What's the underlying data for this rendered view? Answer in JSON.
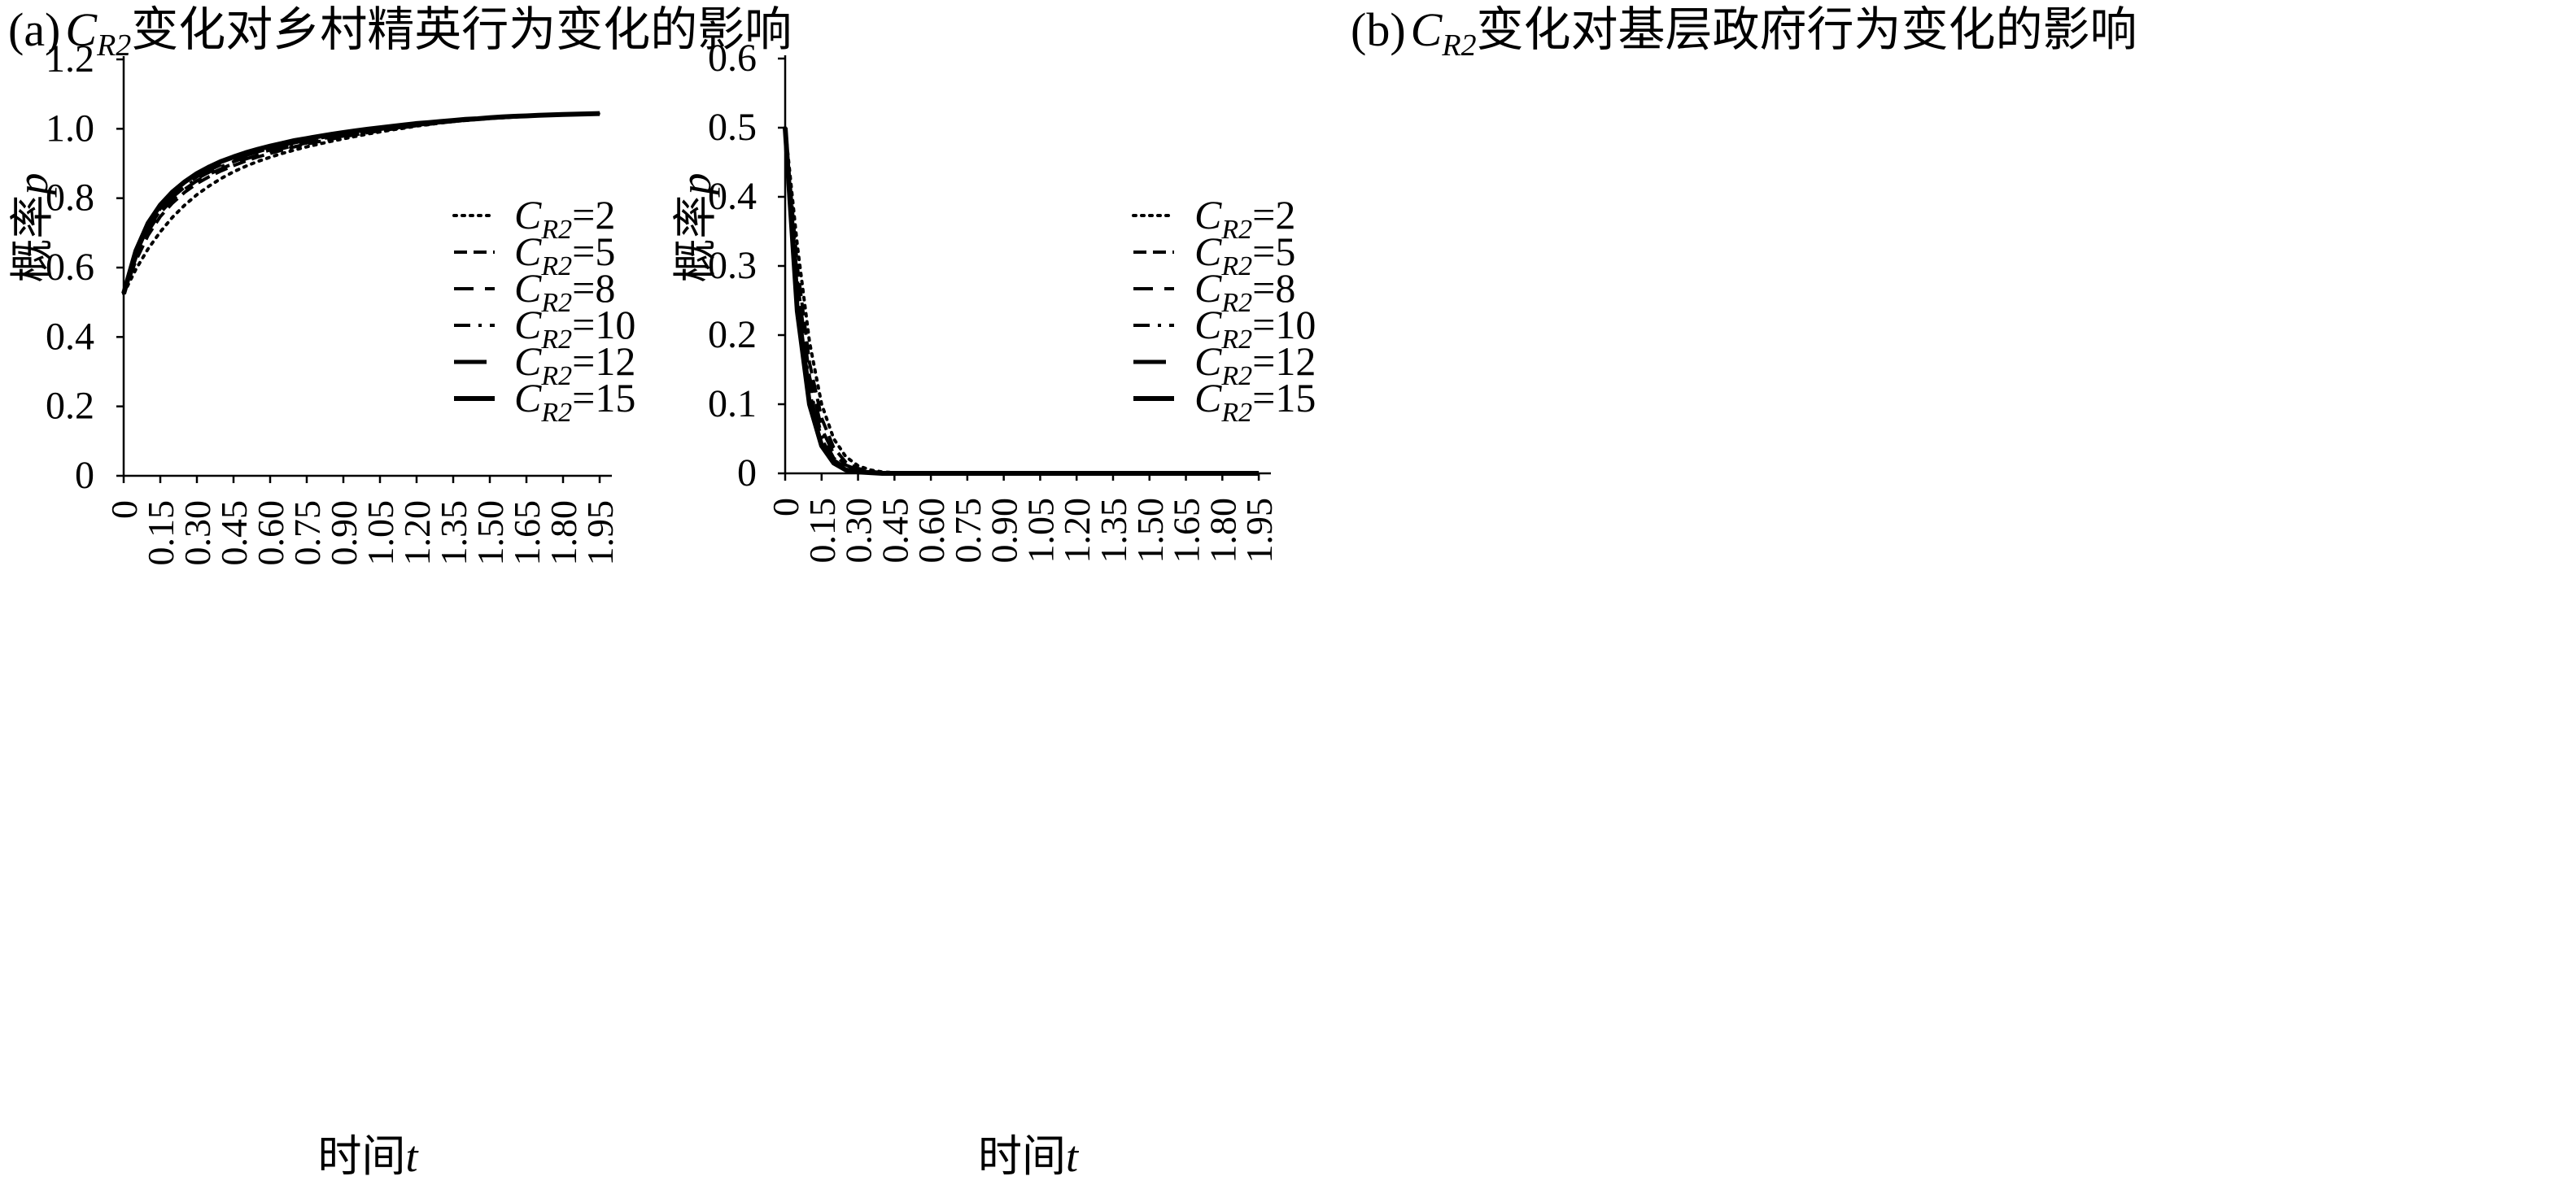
{
  "chart_data": [
    {
      "type": "line",
      "panel_label": "(a)",
      "title": "C_R2变化对乡村精英行为变化的影响",
      "title_main": "变化对乡村精英行为变化的影响",
      "title_symbol": "C",
      "title_subscript": "R2",
      "xlabel_text": "时间",
      "xlabel_var": "t",
      "ylabel_text": "概率",
      "ylabel_var": "p",
      "x_ticks": [
        "0",
        "0.15",
        "0.30",
        "0.45",
        "0.60",
        "0.75",
        "0.90",
        "1.05",
        "1.20",
        "1.35",
        "1.50",
        "1.65",
        "1.80",
        "1.95"
      ],
      "y_ticks": [
        "0",
        "0.2",
        "0.4",
        "0.6",
        "0.8",
        "1.0",
        "1.2"
      ],
      "xlim": [
        0,
        2.0
      ],
      "ylim": [
        0,
        1.2
      ],
      "legend_position": "right",
      "x": [
        0,
        0.05,
        0.1,
        0.15,
        0.2,
        0.25,
        0.3,
        0.35,
        0.4,
        0.45,
        0.5,
        0.55,
        0.6,
        0.65,
        0.7,
        0.75,
        0.8,
        0.85,
        0.9,
        0.95,
        1.0,
        1.05,
        1.1,
        1.15,
        1.2,
        1.25,
        1.3,
        1.35,
        1.4,
        1.45,
        1.5,
        1.55,
        1.6,
        1.65,
        1.7,
        1.75,
        1.8,
        1.85,
        1.9,
        1.95
      ],
      "series": [
        {
          "name": "C_R2=2",
          "label": "=2",
          "dash": "dot",
          "values": [
            0.525,
            0.595,
            0.654,
            0.703,
            0.745,
            0.78,
            0.81,
            0.835,
            0.857,
            0.876,
            0.892,
            0.906,
            0.918,
            0.929,
            0.939,
            0.948,
            0.956,
            0.964,
            0.971,
            0.978,
            0.985,
            0.991,
            0.997,
            1.002,
            1.008,
            1.012,
            1.017,
            1.021,
            1.024,
            1.027,
            1.03,
            1.032,
            1.034,
            1.036,
            1.038,
            1.04,
            1.041,
            1.042,
            1.043,
            1.044
          ]
        },
        {
          "name": "C_R2=5",
          "label": "=5",
          "dash": "short",
          "values": [
            0.525,
            0.62,
            0.693,
            0.747,
            0.786,
            0.817,
            0.842,
            0.862,
            0.879,
            0.894,
            0.907,
            0.919,
            0.929,
            0.939,
            0.948,
            0.956,
            0.963,
            0.97,
            0.977,
            0.983,
            0.989,
            0.994,
            0.999,
            1.004,
            1.009,
            1.013,
            1.017,
            1.021,
            1.024,
            1.027,
            1.03,
            1.032,
            1.034,
            1.036,
            1.038,
            1.04,
            1.041,
            1.042,
            1.043,
            1.044
          ]
        },
        {
          "name": "C_R2=8",
          "label": "=8",
          "dash": "medium",
          "values": [
            0.525,
            0.628,
            0.704,
            0.758,
            0.796,
            0.826,
            0.85,
            0.869,
            0.885,
            0.9,
            0.913,
            0.924,
            0.934,
            0.943,
            0.952,
            0.959,
            0.966,
            0.973,
            0.979,
            0.985,
            0.991,
            0.996,
            1.001,
            1.005,
            1.01,
            1.014,
            1.018,
            1.021,
            1.025,
            1.028,
            1.03,
            1.032,
            1.034,
            1.036,
            1.038,
            1.04,
            1.041,
            1.042,
            1.043,
            1.044
          ]
        },
        {
          "name": "C_R2=10",
          "label": "=10",
          "dash": "dashdot",
          "values": [
            0.525,
            0.634,
            0.712,
            0.765,
            0.803,
            0.832,
            0.856,
            0.875,
            0.891,
            0.905,
            0.918,
            0.929,
            0.939,
            0.948,
            0.956,
            0.963,
            0.97,
            0.976,
            0.982,
            0.988,
            0.993,
            0.998,
            1.003,
            1.007,
            1.011,
            1.015,
            1.019,
            1.022,
            1.025,
            1.028,
            1.03,
            1.033,
            1.035,
            1.037,
            1.038,
            1.04,
            1.041,
            1.042,
            1.043,
            1.044
          ]
        },
        {
          "name": "C_R2=12",
          "label": "=12",
          "dash": "long",
          "values": [
            0.525,
            0.64,
            0.72,
            0.772,
            0.81,
            0.839,
            0.863,
            0.882,
            0.898,
            0.912,
            0.924,
            0.935,
            0.945,
            0.953,
            0.961,
            0.968,
            0.974,
            0.98,
            0.986,
            0.991,
            0.996,
            1.001,
            1.005,
            1.009,
            1.013,
            1.017,
            1.02,
            1.023,
            1.026,
            1.029,
            1.031,
            1.033,
            1.035,
            1.037,
            1.039,
            1.04,
            1.041,
            1.042,
            1.043,
            1.044
          ]
        },
        {
          "name": "C_R2=15",
          "label": "=15",
          "dash": "solid",
          "values": [
            0.525,
            0.648,
            0.728,
            0.78,
            0.818,
            0.847,
            0.871,
            0.89,
            0.906,
            0.919,
            0.931,
            0.941,
            0.95,
            0.958,
            0.966,
            0.972,
            0.978,
            0.984,
            0.989,
            0.994,
            0.999,
            1.003,
            1.007,
            1.011,
            1.015,
            1.018,
            1.021,
            1.024,
            1.027,
            1.029,
            1.032,
            1.034,
            1.036,
            1.037,
            1.039,
            1.04,
            1.041,
            1.042,
            1.043,
            1.044
          ]
        }
      ]
    },
    {
      "type": "line",
      "panel_label": "(b)",
      "title": "C_R2变化对基层政府行为变化的影响",
      "title_main": "变化对基层政府行为变化的影响",
      "title_symbol": "C",
      "title_subscript": "R2",
      "xlabel_text": "时间",
      "xlabel_var": "t",
      "ylabel_text": "概率",
      "ylabel_var": "p",
      "x_ticks": [
        "0",
        "0.15",
        "0.30",
        "0.45",
        "0.60",
        "0.75",
        "0.90",
        "1.05",
        "1.20",
        "1.35",
        "1.50",
        "1.65",
        "1.80",
        "1.95"
      ],
      "y_ticks": [
        "0",
        "0.1",
        "0.2",
        "0.3",
        "0.4",
        "0.5",
        "0.6"
      ],
      "xlim": [
        0,
        2.0
      ],
      "ylim": [
        0,
        0.6
      ],
      "legend_position": "right",
      "x": [
        0,
        0.05,
        0.1,
        0.15,
        0.2,
        0.25,
        0.3,
        0.35,
        0.4,
        0.45,
        0.5,
        0.55,
        0.6,
        0.65,
        0.7,
        0.75,
        0.8,
        0.85,
        0.9,
        0.95,
        1.0,
        1.05,
        1.1,
        1.15,
        1.2,
        1.25,
        1.3,
        1.35,
        1.4,
        1.45,
        1.5,
        1.55,
        1.6,
        1.65,
        1.7,
        1.75,
        1.8,
        1.85,
        1.9,
        1.95
      ],
      "series": [
        {
          "name": "C_R2=2",
          "label": "=2",
          "dash": "dot",
          "values": [
            0.5,
            0.33,
            0.19,
            0.1,
            0.05,
            0.024,
            0.011,
            0.005,
            0.002,
            0.001,
            0,
            0,
            0,
            0,
            0,
            0,
            0,
            0,
            0,
            0,
            0,
            0,
            0,
            0,
            0,
            0,
            0,
            0,
            0,
            0,
            0,
            0,
            0,
            0,
            0,
            0,
            0,
            0,
            0,
            0
          ]
        },
        {
          "name": "C_R2=5",
          "label": "=5",
          "dash": "short",
          "values": [
            0.5,
            0.3,
            0.16,
            0.08,
            0.037,
            0.016,
            0.007,
            0.003,
            0.001,
            0,
            0,
            0,
            0,
            0,
            0,
            0,
            0,
            0,
            0,
            0,
            0,
            0,
            0,
            0,
            0,
            0,
            0,
            0,
            0,
            0,
            0,
            0,
            0,
            0,
            0,
            0,
            0,
            0,
            0,
            0
          ]
        },
        {
          "name": "C_R2=8",
          "label": "=8",
          "dash": "medium",
          "values": [
            0.5,
            0.28,
            0.14,
            0.065,
            0.028,
            0.012,
            0.005,
            0.002,
            0.001,
            0,
            0,
            0,
            0,
            0,
            0,
            0,
            0,
            0,
            0,
            0,
            0,
            0,
            0,
            0,
            0,
            0,
            0,
            0,
            0,
            0,
            0,
            0,
            0,
            0,
            0,
            0,
            0,
            0,
            0,
            0
          ]
        },
        {
          "name": "C_R2=10",
          "label": "=10",
          "dash": "dashdot",
          "values": [
            0.5,
            0.265,
            0.125,
            0.055,
            0.022,
            0.009,
            0.003,
            0.001,
            0,
            0,
            0,
            0,
            0,
            0,
            0,
            0,
            0,
            0,
            0,
            0,
            0,
            0,
            0,
            0,
            0,
            0,
            0,
            0,
            0,
            0,
            0,
            0,
            0,
            0,
            0,
            0,
            0,
            0,
            0,
            0
          ]
        },
        {
          "name": "C_R2=12",
          "label": "=12",
          "dash": "long",
          "values": [
            0.5,
            0.25,
            0.115,
            0.048,
            0.019,
            0.007,
            0.003,
            0.001,
            0,
            0,
            0,
            0,
            0,
            0,
            0,
            0,
            0,
            0,
            0,
            0,
            0,
            0,
            0,
            0,
            0,
            0,
            0,
            0,
            0,
            0,
            0,
            0,
            0,
            0,
            0,
            0,
            0,
            0,
            0,
            0
          ]
        },
        {
          "name": "C_R2=15",
          "label": "=15",
          "dash": "solid",
          "values": [
            0.5,
            0.235,
            0.1,
            0.04,
            0.015,
            0.005,
            0.002,
            0.001,
            0,
            0,
            0,
            0,
            0,
            0,
            0,
            0,
            0,
            0,
            0,
            0,
            0,
            0,
            0,
            0,
            0,
            0,
            0,
            0,
            0,
            0,
            0,
            0,
            0,
            0,
            0,
            0,
            0,
            0,
            0,
            0
          ]
        }
      ]
    }
  ]
}
